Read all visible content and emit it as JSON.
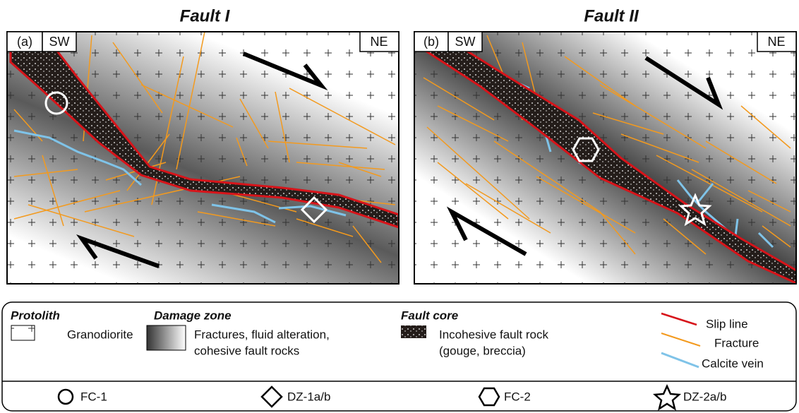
{
  "panels": [
    {
      "title": "Fault I",
      "label": "(a)",
      "left": "SW",
      "right": "NE"
    },
    {
      "title": "Fault II",
      "label": "(b)",
      "left": "SW",
      "right": "NE"
    }
  ],
  "legend": {
    "protolith": {
      "heading": "Protolith",
      "lines": [
        "Granodiorite"
      ]
    },
    "damage_zone": {
      "heading": "Damage zone",
      "lines": [
        "Fractures, fluid alteration,",
        "cohesive fault rocks"
      ]
    },
    "fault_core": {
      "heading": "Fault core",
      "lines": [
        "Incohesive fault rock",
        "(gouge, breccia)"
      ]
    },
    "structures": [
      "Slip line",
      "Fracture",
      "Calcite vein"
    ]
  },
  "samples": [
    "FC-1",
    "DZ-1a/b",
    "FC-2",
    "DZ-2a/b"
  ]
}
